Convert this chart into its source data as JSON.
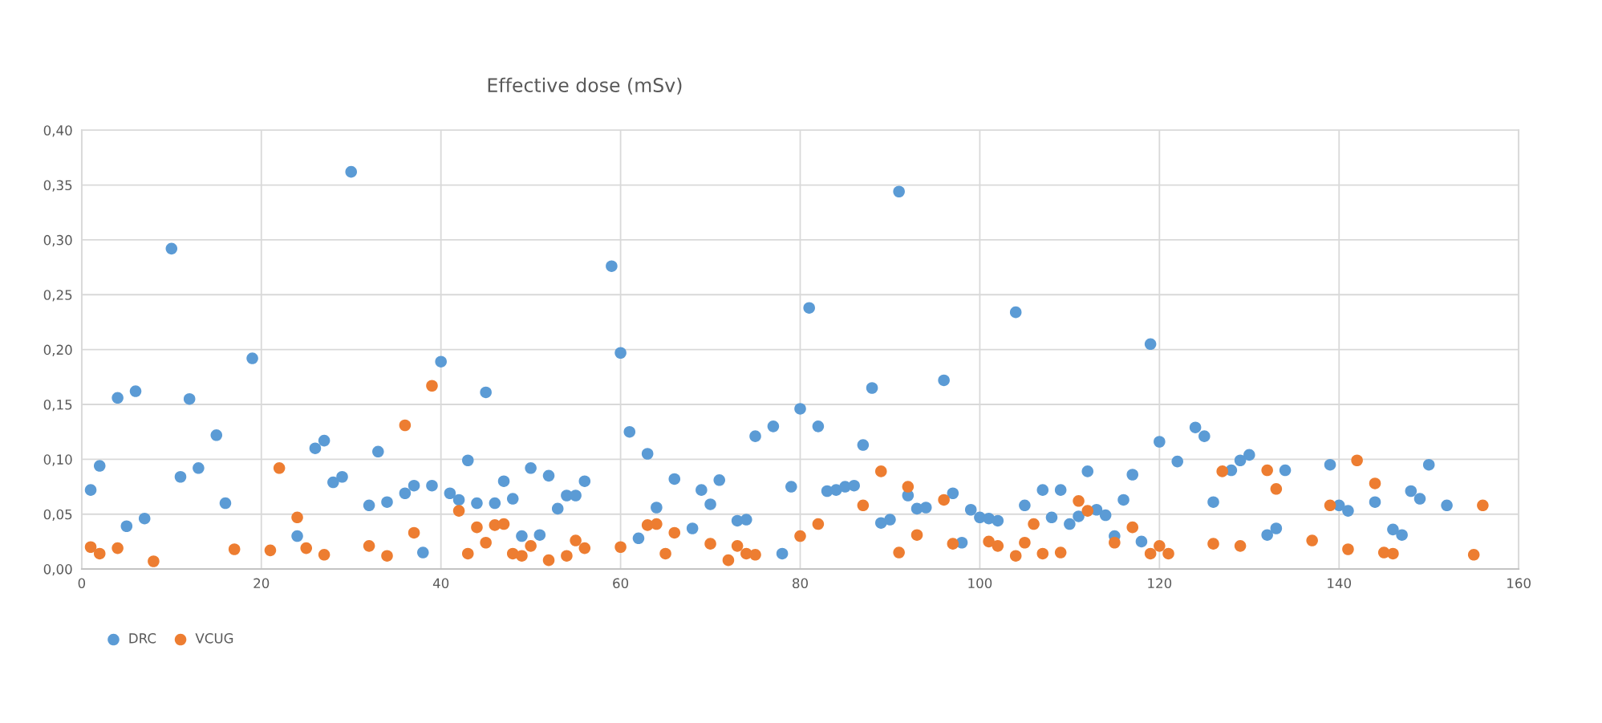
{
  "chart_data": {
    "type": "scatter",
    "title": "Effective dose (mSv)",
    "xlim": [
      0,
      160
    ],
    "xticks": [
      0,
      20,
      40,
      60,
      80,
      100,
      120,
      140,
      160
    ],
    "ylim": [
      0,
      0.4
    ],
    "yticks": [
      {
        "value": 0,
        "label": "0,00"
      },
      {
        "value": 0.05,
        "label": "0,05"
      },
      {
        "value": 0.1,
        "label": "0,10"
      },
      {
        "value": 0.15,
        "label": "0,15"
      },
      {
        "value": 0.2,
        "label": "0,20"
      },
      {
        "value": 0.25,
        "label": "0,25"
      },
      {
        "value": 0.3,
        "label": "0,30"
      },
      {
        "value": 0.35,
        "label": "0,35"
      },
      {
        "value": 0.4,
        "label": "0,40"
      }
    ],
    "grid": true,
    "legend": "bottom left",
    "marker": "circle",
    "series": [
      {
        "name": "DRC",
        "color": "#5b9bd5",
        "x": [
          1,
          2,
          4,
          5,
          6,
          7,
          10,
          11,
          12,
          13,
          15,
          16,
          19,
          24,
          26,
          27,
          28,
          29,
          30,
          32,
          33,
          34,
          36,
          37,
          38,
          39,
          40,
          41,
          42,
          43,
          44,
          45,
          46,
          47,
          48,
          49,
          50,
          51,
          52,
          53,
          54,
          55,
          56,
          59,
          60,
          61,
          62,
          63,
          64,
          66,
          68,
          69,
          70,
          71,
          73,
          74,
          75,
          77,
          78,
          79,
          80,
          81,
          82,
          83,
          84,
          85,
          86,
          87,
          88,
          89,
          90,
          91,
          92,
          93,
          94,
          96,
          97,
          98,
          99,
          100,
          101,
          102,
          104,
          105,
          107,
          108,
          109,
          110,
          111,
          112,
          113,
          114,
          115,
          116,
          117,
          118,
          119,
          120,
          122,
          124,
          125,
          126,
          128,
          129,
          130,
          132,
          133,
          134,
          139,
          140,
          141,
          144,
          146,
          147,
          148,
          149,
          150,
          152
        ],
        "values": [
          0.072,
          0.094,
          0.156,
          0.039,
          0.162,
          0.046,
          0.292,
          0.084,
          0.155,
          0.092,
          0.122,
          0.06,
          0.192,
          0.03,
          0.11,
          0.117,
          0.079,
          0.084,
          0.362,
          0.058,
          0.107,
          0.061,
          0.069,
          0.076,
          0.015,
          0.076,
          0.189,
          0.069,
          0.063,
          0.099,
          0.06,
          0.161,
          0.06,
          0.08,
          0.064,
          0.03,
          0.092,
          0.031,
          0.085,
          0.055,
          0.067,
          0.067,
          0.08,
          0.276,
          0.197,
          0.125,
          0.028,
          0.105,
          0.056,
          0.082,
          0.037,
          0.072,
          0.059,
          0.081,
          0.044,
          0.045,
          0.121,
          0.13,
          0.014,
          0.075,
          0.146,
          0.238,
          0.13,
          0.071,
          0.072,
          0.075,
          0.076,
          0.113,
          0.165,
          0.042,
          0.045,
          0.344,
          0.067,
          0.055,
          0.056,
          0.172,
          0.069,
          0.024,
          0.054,
          0.047,
          0.046,
          0.044,
          0.234,
          0.058,
          0.072,
          0.047,
          0.072,
          0.041,
          0.048,
          0.089,
          0.054,
          0.049,
          0.03,
          0.063,
          0.086,
          0.025,
          0.205,
          0.116,
          0.098,
          0.129,
          0.121,
          0.061,
          0.09,
          0.099,
          0.104,
          0.031,
          0.037,
          0.09,
          0.095,
          0.058,
          0.053,
          0.061,
          0.036,
          0.031,
          0.071,
          0.064,
          0.095,
          0.058
        ]
      },
      {
        "name": "VCUG",
        "color": "#ed7d31",
        "x": [
          1,
          2,
          4,
          8,
          17,
          21,
          22,
          24,
          25,
          27,
          32,
          34,
          36,
          37,
          39,
          42,
          43,
          44,
          45,
          46,
          47,
          48,
          49,
          50,
          52,
          54,
          55,
          56,
          60,
          63,
          64,
          65,
          66,
          70,
          72,
          73,
          74,
          75,
          80,
          82,
          87,
          89,
          91,
          92,
          93,
          96,
          97,
          101,
          102,
          104,
          105,
          106,
          107,
          109,
          111,
          112,
          115,
          117,
          119,
          120,
          121,
          126,
          127,
          129,
          132,
          133,
          137,
          139,
          141,
          142,
          144,
          145,
          146,
          155,
          156
        ],
        "values": [
          0.02,
          0.014,
          0.019,
          0.007,
          0.018,
          0.017,
          0.092,
          0.047,
          0.019,
          0.013,
          0.021,
          0.012,
          0.131,
          0.033,
          0.167,
          0.053,
          0.014,
          0.038,
          0.024,
          0.04,
          0.041,
          0.014,
          0.012,
          0.021,
          0.008,
          0.012,
          0.026,
          0.019,
          0.02,
          0.04,
          0.041,
          0.014,
          0.033,
          0.023,
          0.008,
          0.021,
          0.014,
          0.013,
          0.03,
          0.041,
          0.058,
          0.089,
          0.015,
          0.075,
          0.031,
          0.063,
          0.023,
          0.025,
          0.021,
          0.012,
          0.024,
          0.041,
          0.014,
          0.015,
          0.062,
          0.053,
          0.024,
          0.038,
          0.014,
          0.021,
          0.014,
          0.023,
          0.089,
          0.021,
          0.09,
          0.073,
          0.026,
          0.058,
          0.018,
          0.099,
          0.078,
          0.015,
          0.014,
          0.013,
          0.058
        ]
      }
    ]
  }
}
